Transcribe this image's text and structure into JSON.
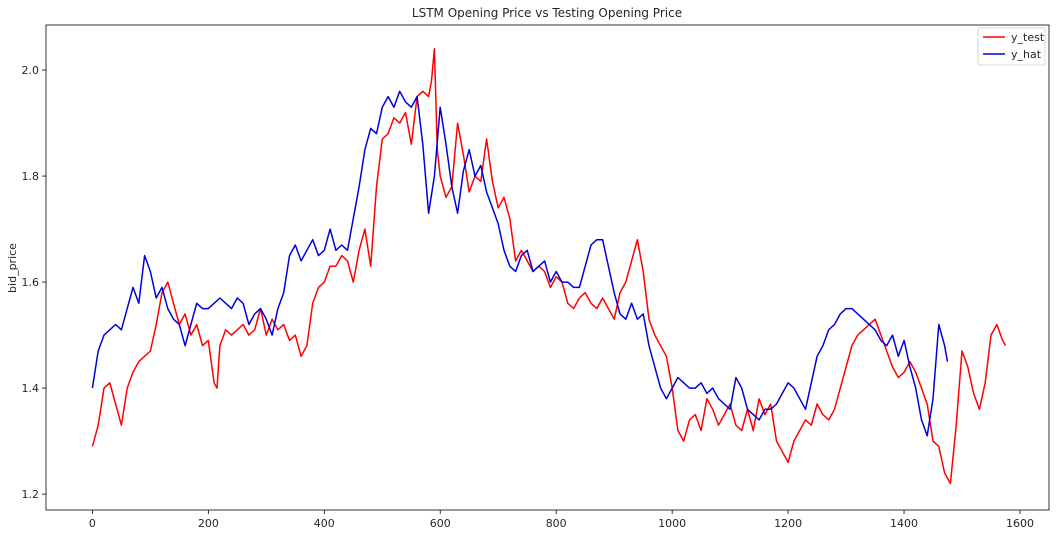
{
  "chart_data": {
    "type": "line",
    "title": "LSTM Opening Price vs Testing Opening Price",
    "xlabel": "",
    "ylabel": "bid_price",
    "xlim": [
      -80,
      1650
    ],
    "ylim": [
      1.17,
      2.085
    ],
    "xticks": [
      0,
      200,
      400,
      600,
      800,
      1000,
      1200,
      1400,
      1600
    ],
    "yticks": [
      1.2,
      1.4,
      1.6,
      1.8,
      2.0
    ],
    "grid": false,
    "legend": "top-right",
    "series": [
      {
        "name": "y_test",
        "color": "#ff0000",
        "points": [
          [
            0,
            1.29
          ],
          [
            10,
            1.33
          ],
          [
            20,
            1.4
          ],
          [
            30,
            1.41
          ],
          [
            40,
            1.37
          ],
          [
            50,
            1.33
          ],
          [
            60,
            1.4
          ],
          [
            70,
            1.43
          ],
          [
            80,
            1.45
          ],
          [
            90,
            1.46
          ],
          [
            100,
            1.47
          ],
          [
            110,
            1.52
          ],
          [
            120,
            1.58
          ],
          [
            130,
            1.6
          ],
          [
            140,
            1.56
          ],
          [
            150,
            1.52
          ],
          [
            160,
            1.54
          ],
          [
            170,
            1.5
          ],
          [
            180,
            1.52
          ],
          [
            190,
            1.48
          ],
          [
            200,
            1.49
          ],
          [
            210,
            1.41
          ],
          [
            215,
            1.4
          ],
          [
            220,
            1.48
          ],
          [
            230,
            1.51
          ],
          [
            240,
            1.5
          ],
          [
            250,
            1.51
          ],
          [
            260,
            1.52
          ],
          [
            270,
            1.5
          ],
          [
            280,
            1.51
          ],
          [
            290,
            1.55
          ],
          [
            300,
            1.5
          ],
          [
            310,
            1.53
          ],
          [
            320,
            1.51
          ],
          [
            330,
            1.52
          ],
          [
            340,
            1.49
          ],
          [
            350,
            1.5
          ],
          [
            360,
            1.46
          ],
          [
            370,
            1.48
          ],
          [
            380,
            1.56
          ],
          [
            390,
            1.59
          ],
          [
            400,
            1.6
          ],
          [
            410,
            1.63
          ],
          [
            420,
            1.63
          ],
          [
            430,
            1.65
          ],
          [
            440,
            1.64
          ],
          [
            450,
            1.6
          ],
          [
            460,
            1.66
          ],
          [
            470,
            1.7
          ],
          [
            480,
            1.63
          ],
          [
            490,
            1.78
          ],
          [
            500,
            1.87
          ],
          [
            510,
            1.88
          ],
          [
            520,
            1.91
          ],
          [
            530,
            1.9
          ],
          [
            540,
            1.92
          ],
          [
            550,
            1.86
          ],
          [
            560,
            1.95
          ],
          [
            570,
            1.96
          ],
          [
            580,
            1.95
          ],
          [
            585,
            1.98
          ],
          [
            590,
            2.04
          ],
          [
            595,
            1.85
          ],
          [
            600,
            1.8
          ],
          [
            610,
            1.76
          ],
          [
            620,
            1.78
          ],
          [
            630,
            1.9
          ],
          [
            640,
            1.84
          ],
          [
            650,
            1.77
          ],
          [
            660,
            1.8
          ],
          [
            670,
            1.79
          ],
          [
            680,
            1.87
          ],
          [
            690,
            1.79
          ],
          [
            700,
            1.74
          ],
          [
            710,
            1.76
          ],
          [
            720,
            1.72
          ],
          [
            730,
            1.64
          ],
          [
            740,
            1.66
          ],
          [
            750,
            1.64
          ],
          [
            760,
            1.62
          ],
          [
            770,
            1.63
          ],
          [
            780,
            1.62
          ],
          [
            790,
            1.59
          ],
          [
            800,
            1.61
          ],
          [
            810,
            1.6
          ],
          [
            820,
            1.56
          ],
          [
            830,
            1.55
          ],
          [
            840,
            1.57
          ],
          [
            850,
            1.58
          ],
          [
            860,
            1.56
          ],
          [
            870,
            1.55
          ],
          [
            880,
            1.57
          ],
          [
            890,
            1.55
          ],
          [
            900,
            1.53
          ],
          [
            910,
            1.58
          ],
          [
            920,
            1.6
          ],
          [
            930,
            1.64
          ],
          [
            940,
            1.68
          ],
          [
            950,
            1.62
          ],
          [
            960,
            1.53
          ],
          [
            970,
            1.5
          ],
          [
            980,
            1.48
          ],
          [
            990,
            1.46
          ],
          [
            1000,
            1.4
          ],
          [
            1010,
            1.32
          ],
          [
            1020,
            1.3
          ],
          [
            1030,
            1.34
          ],
          [
            1040,
            1.35
          ],
          [
            1050,
            1.32
          ],
          [
            1060,
            1.38
          ],
          [
            1070,
            1.36
          ],
          [
            1080,
            1.33
          ],
          [
            1090,
            1.35
          ],
          [
            1100,
            1.37
          ],
          [
            1110,
            1.33
          ],
          [
            1120,
            1.32
          ],
          [
            1130,
            1.36
          ],
          [
            1140,
            1.32
          ],
          [
            1150,
            1.38
          ],
          [
            1160,
            1.35
          ],
          [
            1170,
            1.37
          ],
          [
            1180,
            1.3
          ],
          [
            1190,
            1.28
          ],
          [
            1200,
            1.26
          ],
          [
            1210,
            1.3
          ],
          [
            1220,
            1.32
          ],
          [
            1230,
            1.34
          ],
          [
            1240,
            1.33
          ],
          [
            1250,
            1.37
          ],
          [
            1260,
            1.35
          ],
          [
            1270,
            1.34
          ],
          [
            1280,
            1.36
          ],
          [
            1290,
            1.4
          ],
          [
            1300,
            1.44
          ],
          [
            1310,
            1.48
          ],
          [
            1320,
            1.5
          ],
          [
            1330,
            1.51
          ],
          [
            1340,
            1.52
          ],
          [
            1350,
            1.53
          ],
          [
            1360,
            1.5
          ],
          [
            1370,
            1.47
          ],
          [
            1380,
            1.44
          ],
          [
            1390,
            1.42
          ],
          [
            1400,
            1.43
          ],
          [
            1410,
            1.45
          ],
          [
            1420,
            1.43
          ],
          [
            1430,
            1.4
          ],
          [
            1440,
            1.37
          ],
          [
            1450,
            1.3
          ],
          [
            1460,
            1.29
          ],
          [
            1470,
            1.24
          ],
          [
            1480,
            1.22
          ],
          [
            1490,
            1.33
          ],
          [
            1500,
            1.47
          ],
          [
            1510,
            1.44
          ],
          [
            1520,
            1.39
          ],
          [
            1530,
            1.36
          ],
          [
            1540,
            1.41
          ],
          [
            1550,
            1.5
          ],
          [
            1560,
            1.52
          ],
          [
            1570,
            1.49
          ],
          [
            1575,
            1.48
          ]
        ]
      },
      {
        "name": "y_hat",
        "color": "#0000dd",
        "points": [
          [
            0,
            1.4
          ],
          [
            10,
            1.47
          ],
          [
            20,
            1.5
          ],
          [
            30,
            1.51
          ],
          [
            40,
            1.52
          ],
          [
            50,
            1.51
          ],
          [
            60,
            1.55
          ],
          [
            70,
            1.59
          ],
          [
            80,
            1.56
          ],
          [
            90,
            1.65
          ],
          [
            100,
            1.62
          ],
          [
            110,
            1.57
          ],
          [
            120,
            1.59
          ],
          [
            130,
            1.55
          ],
          [
            140,
            1.53
          ],
          [
            150,
            1.52
          ],
          [
            160,
            1.48
          ],
          [
            170,
            1.52
          ],
          [
            180,
            1.56
          ],
          [
            190,
            1.55
          ],
          [
            200,
            1.55
          ],
          [
            210,
            1.56
          ],
          [
            220,
            1.57
          ],
          [
            230,
            1.56
          ],
          [
            240,
            1.55
          ],
          [
            250,
            1.57
          ],
          [
            260,
            1.56
          ],
          [
            270,
            1.52
          ],
          [
            280,
            1.54
          ],
          [
            290,
            1.55
          ],
          [
            300,
            1.53
          ],
          [
            310,
            1.5
          ],
          [
            320,
            1.55
          ],
          [
            330,
            1.58
          ],
          [
            340,
            1.65
          ],
          [
            350,
            1.67
          ],
          [
            360,
            1.64
          ],
          [
            370,
            1.66
          ],
          [
            380,
            1.68
          ],
          [
            390,
            1.65
          ],
          [
            400,
            1.66
          ],
          [
            410,
            1.7
          ],
          [
            420,
            1.66
          ],
          [
            430,
            1.67
          ],
          [
            440,
            1.66
          ],
          [
            450,
            1.72
          ],
          [
            460,
            1.78
          ],
          [
            470,
            1.85
          ],
          [
            480,
            1.89
          ],
          [
            490,
            1.88
          ],
          [
            500,
            1.93
          ],
          [
            510,
            1.95
          ],
          [
            520,
            1.93
          ],
          [
            530,
            1.96
          ],
          [
            540,
            1.94
          ],
          [
            550,
            1.93
          ],
          [
            560,
            1.95
          ],
          [
            570,
            1.86
          ],
          [
            580,
            1.73
          ],
          [
            590,
            1.8
          ],
          [
            600,
            1.93
          ],
          [
            610,
            1.86
          ],
          [
            620,
            1.78
          ],
          [
            630,
            1.73
          ],
          [
            640,
            1.81
          ],
          [
            650,
            1.85
          ],
          [
            660,
            1.8
          ],
          [
            670,
            1.82
          ],
          [
            680,
            1.77
          ],
          [
            690,
            1.74
          ],
          [
            700,
            1.71
          ],
          [
            710,
            1.66
          ],
          [
            720,
            1.63
          ],
          [
            730,
            1.62
          ],
          [
            740,
            1.65
          ],
          [
            750,
            1.66
          ],
          [
            760,
            1.62
          ],
          [
            770,
            1.63
          ],
          [
            780,
            1.64
          ],
          [
            790,
            1.6
          ],
          [
            800,
            1.62
          ],
          [
            810,
            1.6
          ],
          [
            820,
            1.6
          ],
          [
            830,
            1.59
          ],
          [
            840,
            1.59
          ],
          [
            850,
            1.63
          ],
          [
            860,
            1.67
          ],
          [
            870,
            1.68
          ],
          [
            880,
            1.68
          ],
          [
            890,
            1.63
          ],
          [
            900,
            1.58
          ],
          [
            910,
            1.54
          ],
          [
            920,
            1.53
          ],
          [
            930,
            1.56
          ],
          [
            940,
            1.53
          ],
          [
            950,
            1.54
          ],
          [
            960,
            1.48
          ],
          [
            970,
            1.44
          ],
          [
            980,
            1.4
          ],
          [
            990,
            1.38
          ],
          [
            1000,
            1.4
          ],
          [
            1010,
            1.42
          ],
          [
            1020,
            1.41
          ],
          [
            1030,
            1.4
          ],
          [
            1040,
            1.4
          ],
          [
            1050,
            1.41
          ],
          [
            1060,
            1.39
          ],
          [
            1070,
            1.4
          ],
          [
            1080,
            1.38
          ],
          [
            1090,
            1.37
          ],
          [
            1100,
            1.36
          ],
          [
            1110,
            1.42
          ],
          [
            1120,
            1.4
          ],
          [
            1130,
            1.36
          ],
          [
            1140,
            1.35
          ],
          [
            1150,
            1.34
          ],
          [
            1160,
            1.36
          ],
          [
            1170,
            1.36
          ],
          [
            1180,
            1.37
          ],
          [
            1190,
            1.39
          ],
          [
            1200,
            1.41
          ],
          [
            1210,
            1.4
          ],
          [
            1220,
            1.38
          ],
          [
            1230,
            1.36
          ],
          [
            1240,
            1.41
          ],
          [
            1250,
            1.46
          ],
          [
            1260,
            1.48
          ],
          [
            1270,
            1.51
          ],
          [
            1280,
            1.52
          ],
          [
            1290,
            1.54
          ],
          [
            1300,
            1.55
          ],
          [
            1310,
            1.55
          ],
          [
            1320,
            1.54
          ],
          [
            1330,
            1.53
          ],
          [
            1340,
            1.52
          ],
          [
            1350,
            1.51
          ],
          [
            1360,
            1.49
          ],
          [
            1370,
            1.48
          ],
          [
            1380,
            1.5
          ],
          [
            1390,
            1.46
          ],
          [
            1400,
            1.49
          ],
          [
            1410,
            1.44
          ],
          [
            1420,
            1.4
          ],
          [
            1430,
            1.34
          ],
          [
            1440,
            1.31
          ],
          [
            1450,
            1.38
          ],
          [
            1460,
            1.52
          ],
          [
            1470,
            1.48
          ],
          [
            1475,
            1.45
          ]
        ]
      }
    ]
  }
}
